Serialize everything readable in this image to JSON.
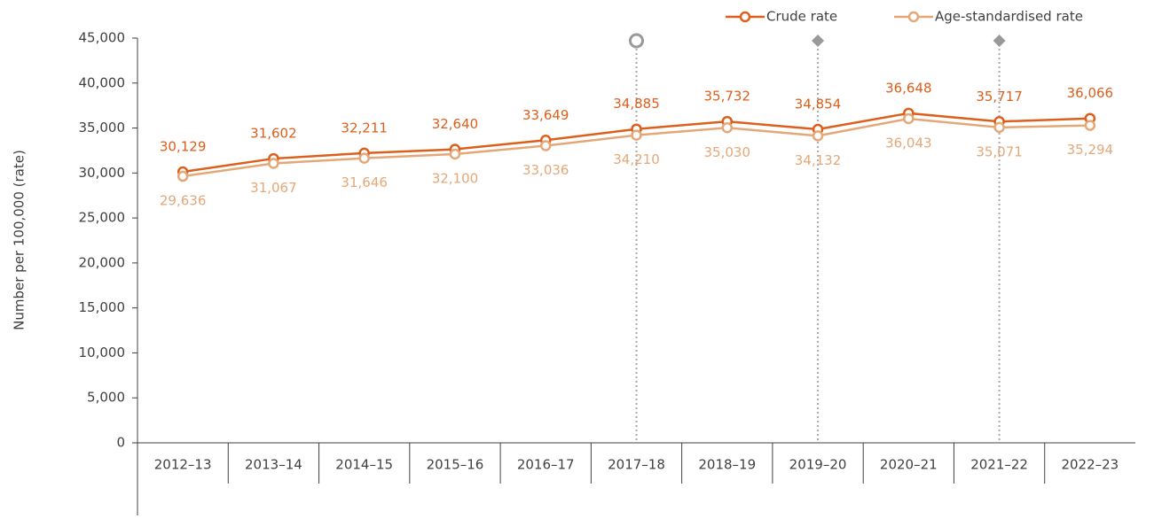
{
  "chart_data": {
    "type": "line",
    "y_label": "Number per 100,000 (rate)",
    "categories": [
      "2012–13",
      "2013–14",
      "2014–15",
      "2015–16",
      "2016–17",
      "2017–18",
      "2018–19",
      "2019–20",
      "2020–21",
      "2021–22",
      "2022–23"
    ],
    "series": [
      {
        "name": "Crude rate",
        "color": "#dc5f1c",
        "values": [
          30129,
          31602,
          32211,
          32640,
          33649,
          34885,
          35732,
          34854,
          36648,
          35717,
          36066
        ],
        "value_labels": [
          "30,129",
          "31,602",
          "32,211",
          "32,640",
          "33,649",
          "34,885",
          "35,732",
          "34,854",
          "36,648",
          "35,717",
          "36,066"
        ]
      },
      {
        "name": "Age-standardised rate",
        "color": "#e4a878",
        "values": [
          29636,
          31067,
          31646,
          32100,
          33036,
          34210,
          35030,
          34132,
          36043,
          35071,
          35294
        ],
        "value_labels": [
          "29,636",
          "31,067",
          "31,646",
          "32,100",
          "33,036",
          "34,210",
          "35,030",
          "34,132",
          "36,043",
          "35,071",
          "35,294"
        ]
      }
    ],
    "ylim": [
      0,
      45000
    ],
    "yticks": [
      0,
      {
        "value": 5000,
        "label": "5,000"
      },
      {
        "value": 10000,
        "label": "10,000"
      },
      {
        "value": 15000,
        "label": "15,000"
      },
      {
        "value": 20000,
        "label": "20,000"
      },
      {
        "value": 25000,
        "label": "25,000"
      },
      {
        "value": 30000,
        "label": "30,000"
      },
      {
        "value": 35000,
        "label": "35,000"
      },
      {
        "value": 40000,
        "label": "40,000"
      },
      {
        "value": 45000,
        "label": "45,000"
      }
    ],
    "legend": "top-right"
  }
}
